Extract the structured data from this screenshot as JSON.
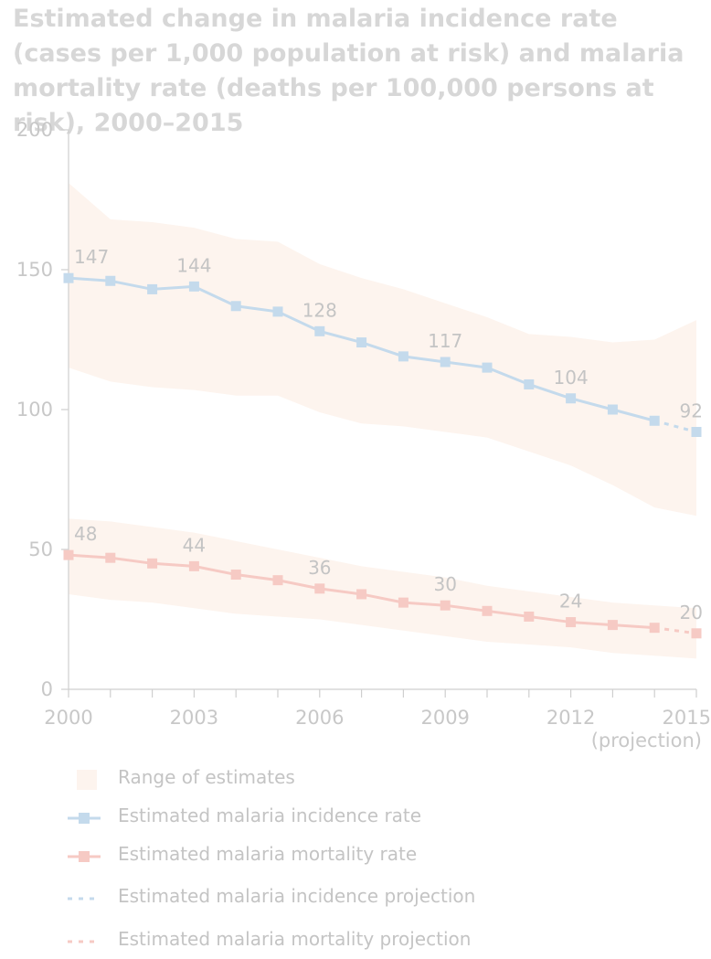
{
  "title": "Estimated change in malaria incidence rate (cases per 1,000 population at risk) and malaria mortality rate (deaths per 100,000 persons at risk), 2000–2015",
  "x_tick_labels": [
    "2000",
    "2003",
    "2006",
    "2009",
    "2012",
    "2015"
  ],
  "x_tick_sublabel": "(projection)",
  "y_tick_labels": [
    "0",
    "50",
    "100",
    "150",
    "200"
  ],
  "colors": {
    "incidence": "#c4daec",
    "mortality": "#f6cac4",
    "range": "#fdf4ee",
    "axis": "#cfcfcf",
    "text": "#c4c4c4"
  },
  "legend": [
    {
      "key": "range",
      "label": "Range of estimates"
    },
    {
      "key": "incidence-line",
      "label": "Estimated malaria incidence rate"
    },
    {
      "key": "mortality-line",
      "label": "Estimated malaria mortality rate"
    },
    {
      "key": "incidence-projection",
      "label": "Estimated malaria incidence projection"
    },
    {
      "key": "mortality-projection",
      "label": "Estimated malaria mortality projection"
    }
  ],
  "chart_data": {
    "type": "line",
    "title": "Estimated change in malaria incidence rate (cases per 1,000 population at risk) and malaria mortality rate (deaths per 100,000 persons at risk), 2000–2015",
    "x": [
      2000,
      2001,
      2002,
      2003,
      2004,
      2005,
      2006,
      2007,
      2008,
      2009,
      2010,
      2011,
      2012,
      2013,
      2014,
      2015
    ],
    "xlim": [
      2000,
      2015
    ],
    "ylim": [
      0,
      200
    ],
    "y_ticks": [
      0,
      50,
      100,
      150,
      200
    ],
    "x_ticks": [
      2000,
      2003,
      2006,
      2009,
      2012,
      2015
    ],
    "grid": false,
    "series": [
      {
        "name": "Estimated malaria incidence rate",
        "values": [
          147,
          146,
          143,
          144,
          137,
          135,
          128,
          124,
          119,
          117,
          115,
          109,
          104,
          100,
          96,
          92
        ],
        "projection_from_index": 14,
        "labeled_points": {
          "2000": "147",
          "2003": "144",
          "2006": "128",
          "2009": "117",
          "2012": "104",
          "2015": "92"
        },
        "range_upper": [
          181,
          168,
          167,
          165,
          161,
          160,
          152,
          147,
          143,
          138,
          133,
          127,
          126,
          124,
          125,
          132
        ],
        "range_lower": [
          115,
          110,
          108,
          107,
          105,
          105,
          99,
          95,
          94,
          92,
          90,
          85,
          80,
          73,
          65,
          62
        ]
      },
      {
        "name": "Estimated malaria mortality rate",
        "values": [
          48,
          47,
          45,
          44,
          41,
          39,
          36,
          34,
          31,
          30,
          28,
          26,
          24,
          23,
          22,
          20
        ],
        "projection_from_index": 14,
        "labeled_points": {
          "2000": "48",
          "2003": "44",
          "2006": "36",
          "2009": "30",
          "2012": "24",
          "2015": "20"
        },
        "range_upper": [
          61,
          60,
          58,
          56,
          53,
          50,
          47,
          44,
          42,
          40,
          37,
          35,
          33,
          31,
          30,
          29
        ],
        "range_lower": [
          34,
          32,
          31,
          29,
          27,
          26,
          25,
          23,
          21,
          19,
          17,
          16,
          15,
          13,
          12,
          11
        ]
      }
    ],
    "range_label": "Range of estimates",
    "projection_label": "Estimated malaria incidence projection"
  }
}
